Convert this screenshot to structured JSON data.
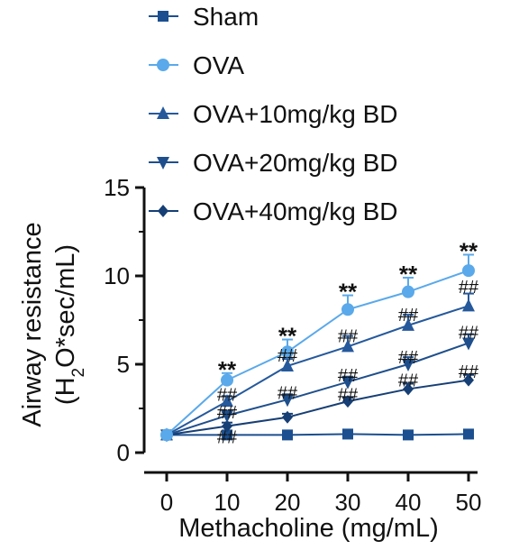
{
  "chart_data": {
    "type": "line",
    "xlabel": "Methacholine (mg/mL)",
    "ylabel_line1": "Airway resistance",
    "ylabel_line2_parts": [
      "(H",
      "2",
      "O*sec/mL)"
    ],
    "x": [
      0,
      10,
      20,
      30,
      40,
      50
    ],
    "xlim": [
      0,
      50
    ],
    "ylim": [
      0,
      15
    ],
    "xticks": [
      "0",
      "10",
      "20",
      "30",
      "40",
      "50"
    ],
    "yticks": [
      "0",
      "5",
      "10",
      "15"
    ],
    "grid": false,
    "legend_position": "top",
    "series": [
      {
        "name": "Sham",
        "marker": "square",
        "color": "#1b4f8f",
        "values": [
          1.0,
          1.0,
          1.0,
          1.05,
          1.0,
          1.05
        ],
        "errors": [
          0.1,
          0.1,
          0.1,
          0.1,
          0.1,
          0.1
        ]
      },
      {
        "name": "OVA",
        "marker": "circle",
        "color": "#5aa9ea",
        "values": [
          1.0,
          4.1,
          5.7,
          8.1,
          9.1,
          10.3
        ],
        "errors": [
          0.1,
          0.4,
          0.7,
          0.8,
          0.8,
          0.9
        ]
      },
      {
        "name": "OVA+10mg/kg BD",
        "marker": "triangle-up",
        "color": "#25599c",
        "values": [
          1.0,
          2.9,
          4.9,
          6.0,
          7.2,
          8.3
        ],
        "errors": [
          0.1,
          0.3,
          0.4,
          0.6,
          0.6,
          0.7
        ]
      },
      {
        "name": "OVA+20mg/kg BD",
        "marker": "triangle-down",
        "color": "#1e4f8c",
        "values": [
          1.0,
          2.1,
          3.0,
          4.0,
          5.0,
          6.2
        ],
        "errors": [
          0.1,
          0.2,
          0.3,
          0.3,
          0.4,
          0.5
        ]
      },
      {
        "name": "OVA+40mg/kg BD",
        "marker": "diamond",
        "color": "#163f75",
        "values": [
          1.0,
          1.5,
          2.0,
          2.9,
          3.6,
          4.1
        ],
        "errors": [
          0.1,
          0.2,
          0.2,
          0.2,
          0.3,
          0.3
        ]
      }
    ],
    "annotations": [
      {
        "text": "**",
        "x": 10,
        "y": 4.6
      },
      {
        "text": "**",
        "x": 20,
        "y": 6.5
      },
      {
        "text": "**",
        "x": 30,
        "y": 9.0
      },
      {
        "text": "**",
        "x": 40,
        "y": 10.0
      },
      {
        "text": "**",
        "x": 50,
        "y": 11.3
      },
      {
        "text": "##",
        "x": 10,
        "y": 3.3
      },
      {
        "text": "##",
        "x": 10,
        "y": 2.3
      },
      {
        "text": "##",
        "x": 10,
        "y": 0.9
      },
      {
        "text": "##",
        "x": 20,
        "y": 5.5
      },
      {
        "text": "##",
        "x": 20,
        "y": 3.4
      },
      {
        "text": "##",
        "x": 30,
        "y": 6.6
      },
      {
        "text": "##",
        "x": 30,
        "y": 4.4
      },
      {
        "text": "##",
        "x": 30,
        "y": 3.3
      },
      {
        "text": "##",
        "x": 40,
        "y": 7.8
      },
      {
        "text": "##",
        "x": 40,
        "y": 5.4
      },
      {
        "text": "##",
        "x": 40,
        "y": 4.1
      },
      {
        "text": "##",
        "x": 50,
        "y": 9.4
      },
      {
        "text": "##",
        "x": 50,
        "y": 6.8
      },
      {
        "text": "##",
        "x": 50,
        "y": 4.6
      }
    ]
  }
}
